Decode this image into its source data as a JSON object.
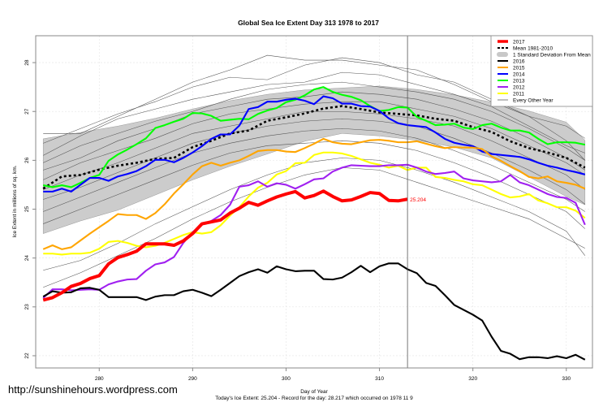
{
  "watermark": "http://sunshinehours.wordpress.com",
  "chart_data": {
    "type": "line",
    "title": "Global Sea Ice Extent Day 313 1978 to 2017",
    "xlabel": "Day of Year",
    "ylabel": "Ice Extent in millions of sq. km.",
    "subtitle_bottom": "Today's Ice Extent: 25.204  - Record for the day: 28.217 which occurred on 1978 11 9",
    "xlim": [
      273.2,
      332.8
    ],
    "ylim": [
      21.75,
      28.55
    ],
    "xticks": [
      280,
      290,
      300,
      310,
      320,
      330
    ],
    "xtick_labels": [
      "280",
      "290",
      "300",
      "310",
      "320",
      "330"
    ],
    "yticks": [
      22,
      23,
      24,
      25,
      26,
      27,
      28
    ],
    "ytick_labels": [
      "22",
      "23",
      "24",
      "25",
      "26",
      "27",
      "28"
    ],
    "grid": true,
    "current_day_marker": 313,
    "annotation": {
      "x": 313,
      "y": 25.204,
      "text": "25.204",
      "color": "#ff0000"
    },
    "legend_position": "top-right",
    "legend": [
      {
        "label": "2017",
        "color": "#ff0000",
        "style": "thick"
      },
      {
        "label": "Mean 1981-2010",
        "color": "#000000",
        "style": "dotted"
      },
      {
        "label": "1 Standard Deviation From Mean",
        "color": "#c8c8c8",
        "style": "band"
      },
      {
        "label": "2016",
        "color": "#000000",
        "style": "solid"
      },
      {
        "label": "2015",
        "color": "#ffa500",
        "style": "solid"
      },
      {
        "label": "2014",
        "color": "#0000ff",
        "style": "solid"
      },
      {
        "label": "2013",
        "color": "#00ff00",
        "style": "solid"
      },
      {
        "label": "2012",
        "color": "#a020f0",
        "style": "solid"
      },
      {
        "label": "2011",
        "color": "#ffff00",
        "style": "solid"
      },
      {
        "label": "Every Other Year",
        "color": "#606060",
        "style": "thin"
      }
    ],
    "sd_band": {
      "x": [
        274,
        278,
        282,
        286,
        290,
        294,
        298,
        302,
        306,
        310,
        314,
        318,
        322,
        326,
        330,
        332
      ],
      "upper": [
        26.44,
        26.57,
        26.7,
        26.86,
        27.05,
        27.22,
        27.35,
        27.44,
        27.48,
        27.52,
        27.45,
        27.34,
        27.19,
        27.01,
        26.78,
        26.41
      ],
      "lower": [
        24.5,
        24.76,
        24.98,
        25.29,
        25.6,
        25.88,
        26.13,
        26.39,
        26.55,
        26.5,
        26.41,
        26.27,
        26.05,
        25.66,
        25.26,
        25.09
      ]
    },
    "mean": {
      "name": "Mean 1981-2010",
      "x": [
        274,
        276,
        278,
        280,
        282,
        284,
        286,
        288,
        290,
        292,
        294,
        296,
        298,
        300,
        302,
        304,
        306,
        308,
        310,
        312,
        314,
        316,
        318,
        320,
        322,
        324,
        326,
        328,
        330,
        332
      ],
      "values": [
        25.42,
        25.67,
        25.7,
        25.81,
        25.89,
        25.95,
        26.03,
        26.05,
        26.27,
        26.4,
        26.55,
        26.61,
        26.81,
        26.88,
        26.96,
        27.06,
        27.11,
        27.05,
        26.98,
        26.95,
        26.92,
        26.85,
        26.81,
        26.68,
        26.58,
        26.39,
        26.25,
        26.16,
        26.05,
        25.85
      ]
    },
    "other_years": {
      "x": [
        274,
        278,
        282,
        286,
        290,
        294,
        298,
        302,
        306,
        310,
        314,
        318,
        322,
        326,
        330,
        332
      ],
      "series": [
        [
          26.55,
          26.55,
          26.9,
          27.25,
          27.6,
          27.85,
          28.15,
          28.05,
          28.05,
          27.95,
          27.85,
          27.55,
          27.2,
          26.9,
          26.4,
          26.0
        ],
        [
          26.35,
          26.65,
          26.95,
          27.2,
          27.5,
          27.7,
          27.65,
          27.95,
          28.1,
          28.0,
          27.75,
          27.6,
          27.25,
          26.9,
          26.7,
          26.45
        ],
        [
          26.1,
          26.5,
          26.85,
          27.05,
          27.25,
          27.4,
          27.55,
          27.6,
          27.8,
          27.75,
          27.55,
          27.35,
          27.1,
          26.7,
          26.3,
          26.15
        ],
        [
          25.95,
          26.3,
          26.55,
          26.8,
          27.0,
          27.25,
          27.45,
          27.55,
          27.6,
          27.5,
          27.4,
          27.25,
          27.0,
          26.65,
          26.25,
          26.0
        ],
        [
          25.8,
          26.05,
          26.4,
          26.65,
          26.95,
          27.1,
          27.25,
          27.3,
          27.4,
          27.35,
          27.25,
          27.05,
          26.8,
          26.45,
          26.05,
          25.8
        ],
        [
          25.6,
          25.95,
          26.2,
          26.45,
          26.75,
          26.95,
          27.05,
          27.15,
          27.2,
          27.2,
          27.05,
          26.9,
          26.65,
          26.3,
          25.95,
          25.7
        ],
        [
          25.4,
          25.7,
          25.95,
          26.25,
          26.55,
          26.7,
          26.85,
          27.0,
          27.0,
          26.95,
          26.85,
          26.7,
          26.4,
          26.05,
          25.7,
          25.4
        ],
        [
          25.2,
          25.45,
          25.75,
          26.05,
          26.35,
          26.55,
          26.7,
          26.8,
          26.85,
          26.8,
          26.7,
          26.45,
          26.15,
          25.8,
          25.4,
          25.1
        ],
        [
          24.95,
          25.25,
          25.55,
          25.85,
          26.15,
          26.35,
          26.5,
          26.6,
          26.65,
          26.6,
          26.45,
          26.2,
          25.9,
          25.55,
          25.2,
          24.95
        ],
        [
          24.7,
          25.0,
          25.3,
          25.6,
          25.9,
          26.15,
          26.3,
          26.35,
          26.4,
          26.35,
          26.2,
          25.95,
          25.65,
          25.3,
          24.95,
          24.6
        ],
        [
          23.75,
          23.95,
          24.3,
          24.7,
          25.05,
          25.4,
          25.7,
          25.95,
          26.05,
          26.0,
          25.8,
          25.55,
          25.25,
          24.95,
          24.55,
          24.05
        ],
        [
          23.4,
          23.7,
          24.05,
          24.4,
          24.8,
          25.15,
          25.45,
          25.7,
          25.85,
          25.8,
          25.55,
          25.3,
          25.05,
          24.8,
          24.4,
          24.2
        ]
      ]
    },
    "series": [
      {
        "name": "2011",
        "color": "#ffff00",
        "x_start": 274,
        "values": [
          24.09,
          24.09,
          24.07,
          24.09,
          24.09,
          24.11,
          24.19,
          24.33,
          24.35,
          24.31,
          24.25,
          24.22,
          24.25,
          24.31,
          24.39,
          24.47,
          24.53,
          24.5,
          24.53,
          24.67,
          24.87,
          25.04,
          25.26,
          25.44,
          25.54,
          25.71,
          25.78,
          25.94,
          25.95,
          26.11,
          26.16,
          26.16,
          26.14,
          26.09,
          26.02,
          25.95,
          25.91,
          25.85,
          25.89,
          25.8,
          25.85,
          25.85,
          25.66,
          25.64,
          25.6,
          25.57,
          25.51,
          25.49,
          25.4,
          25.31,
          25.24,
          25.26,
          25.31,
          25.18,
          25.12,
          25.04,
          25.04,
          24.97,
          24.82
        ]
      },
      {
        "name": "2012",
        "color": "#a020f0",
        "x_start": 274,
        "values": [
          23.18,
          23.36,
          23.36,
          23.34,
          23.35,
          23.36,
          23.35,
          23.46,
          23.52,
          23.56,
          23.57,
          23.74,
          23.87,
          23.91,
          24.02,
          24.31,
          24.53,
          24.69,
          24.76,
          24.88,
          25.09,
          25.46,
          25.49,
          25.57,
          25.46,
          25.53,
          25.5,
          25.42,
          25.51,
          25.61,
          25.63,
          25.77,
          25.85,
          25.9,
          25.89,
          25.88,
          25.88,
          25.9,
          25.9,
          25.91,
          25.85,
          25.77,
          25.72,
          25.74,
          25.77,
          25.63,
          25.59,
          25.57,
          25.55,
          25.57,
          25.7,
          25.55,
          25.49,
          25.4,
          25.31,
          25.25,
          25.23,
          25.13,
          24.68
        ]
      },
      {
        "name": "2013",
        "color": "#00ff00",
        "x_start": 274,
        "values": [
          25.49,
          25.45,
          25.49,
          25.45,
          25.54,
          25.64,
          25.7,
          25.99,
          26.12,
          26.22,
          26.33,
          26.45,
          26.66,
          26.72,
          26.79,
          26.85,
          26.97,
          26.96,
          26.91,
          26.81,
          26.83,
          26.85,
          26.84,
          26.95,
          27.02,
          27.07,
          27.19,
          27.24,
          27.33,
          27.45,
          27.5,
          27.4,
          27.34,
          27.3,
          27.23,
          27.11,
          27.01,
          27.03,
          27.09,
          27.08,
          26.89,
          26.81,
          26.72,
          26.73,
          26.75,
          26.67,
          26.64,
          26.72,
          26.75,
          26.67,
          26.61,
          26.61,
          26.57,
          26.44,
          26.33,
          26.37,
          26.37,
          26.36,
          26.32
        ]
      },
      {
        "name": "2014",
        "color": "#0000ff",
        "x_start": 274,
        "values": [
          25.36,
          25.36,
          25.42,
          25.36,
          25.5,
          25.64,
          25.64,
          25.58,
          25.67,
          25.72,
          25.78,
          25.88,
          26.01,
          26.01,
          25.96,
          26.05,
          26.16,
          26.29,
          26.44,
          26.53,
          26.53,
          26.71,
          27.05,
          27.09,
          27.2,
          27.2,
          27.24,
          27.26,
          27.22,
          27.15,
          27.31,
          27.27,
          27.16,
          27.16,
          27.11,
          27.1,
          27.01,
          26.86,
          26.76,
          26.72,
          26.7,
          26.68,
          26.57,
          26.44,
          26.36,
          26.32,
          26.29,
          26.18,
          26.13,
          26.11,
          26.09,
          26.07,
          26.02,
          25.95,
          25.89,
          25.85,
          25.8,
          25.76,
          25.71
        ]
      },
      {
        "name": "2015",
        "color": "#ffa500",
        "x_start": 274,
        "values": [
          24.18,
          24.26,
          24.18,
          24.22,
          24.36,
          24.5,
          24.63,
          24.76,
          24.9,
          24.88,
          24.88,
          24.8,
          24.92,
          25.1,
          25.32,
          25.51,
          25.71,
          25.88,
          25.95,
          25.89,
          25.95,
          26.0,
          26.09,
          26.19,
          26.21,
          26.21,
          26.18,
          26.17,
          26.25,
          26.34,
          26.44,
          26.37,
          26.34,
          26.33,
          26.37,
          26.41,
          26.42,
          26.4,
          26.37,
          26.37,
          26.39,
          26.34,
          26.29,
          26.25,
          26.27,
          26.26,
          26.26,
          26.23,
          26.08,
          25.99,
          25.88,
          25.78,
          25.66,
          25.63,
          25.67,
          25.57,
          25.54,
          25.5,
          25.42
        ]
      },
      {
        "name": "2016",
        "color": "#000000",
        "x_start": 274,
        "values": [
          23.21,
          23.32,
          23.29,
          23.3,
          23.38,
          23.39,
          23.35,
          23.2,
          23.2,
          23.2,
          23.2,
          23.14,
          23.21,
          23.24,
          23.24,
          23.32,
          23.35,
          23.29,
          23.22,
          23.35,
          23.49,
          23.63,
          23.71,
          23.77,
          23.7,
          23.83,
          23.77,
          23.73,
          23.74,
          23.74,
          23.57,
          23.56,
          23.6,
          23.71,
          23.84,
          23.71,
          23.83,
          23.89,
          23.89,
          23.77,
          23.69,
          23.49,
          23.43,
          23.24,
          23.04,
          22.94,
          22.84,
          22.72,
          22.39,
          22.1,
          22.04,
          21.93,
          21.97,
          21.97,
          21.95,
          21.99,
          21.95,
          22.02,
          21.92
        ]
      },
      {
        "name": "2017",
        "color": "#ff0000",
        "x_start": 274,
        "thick": true,
        "values": [
          23.14,
          23.19,
          23.29,
          23.42,
          23.48,
          23.58,
          23.64,
          23.88,
          24.01,
          24.07,
          24.14,
          24.29,
          24.29,
          24.29,
          24.26,
          24.35,
          24.5,
          24.7,
          24.74,
          24.78,
          24.92,
          25.02,
          25.14,
          25.08,
          25.17,
          25.25,
          25.31,
          25.36,
          25.23,
          25.28,
          25.37,
          25.26,
          25.17,
          25.19,
          25.26,
          25.34,
          25.32,
          25.18,
          25.17,
          25.204
        ]
      }
    ]
  }
}
